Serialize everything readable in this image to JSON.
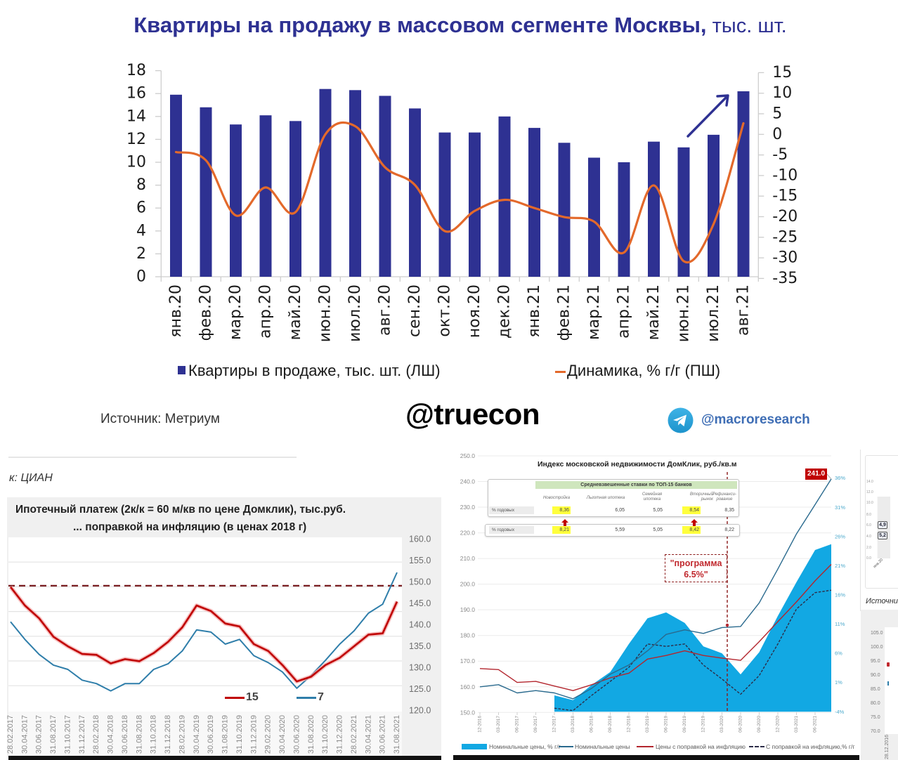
{
  "top_panel": {
    "title": {
      "main": "Квартиры на продажу в массовом сегменте Москвы,",
      "unit": " тыс. шт."
    },
    "legend": {
      "bars_label": "Квартиры в продаже, тыс. шт. (ЛШ)",
      "line_label": "Динамика, % г/г (ПШ)"
    },
    "source": "Источник: Метриум",
    "watermark": "@truecon",
    "telegram": {
      "icon": "telegram-icon",
      "handle": "@macroresearch"
    }
  },
  "bottom_left_panel": {
    "source_fragment": "к: ЦИАН",
    "title_line1": "Ипотечный платеж (2к/к = 60 м/кв по цене Домклик), тыс.руб.",
    "title_line2": "... поправкой на инфляцию (в ценах 2018 г)",
    "legend": [
      {
        "label": "15"
      },
      {
        "label": "7"
      }
    ]
  },
  "bottom_right_panel": {
    "title": "Индекс московской недвижимости ДомКлик, руб./кв.м",
    "last_value_badge": "241.0",
    "annotation": {
      "line1": "\"программа",
      "line2": "6.5%\""
    },
    "rates_table": {
      "header": "Средневзвешенные ставки по ТОП-15 банков",
      "columns": [
        {
          "line1": "Новостройка",
          "line2": ""
        },
        {
          "line1": "Льготная ипотека",
          "line2": ""
        },
        {
          "line1": "Семейная",
          "line2": "ипотека"
        },
        {
          "line1": "Вторичный",
          "line2": "рынок"
        },
        {
          "line1": "Рефинанси-",
          "line2": "рование"
        }
      ],
      "rows": [
        {
          "label": "% годовых",
          "values": [
            "8,36",
            "6,05",
            "5,05",
            "8,54",
            "8,35"
          ]
        },
        {
          "label": "% годовых",
          "values": [
            "8,21",
            "5,59",
            "5,05",
            "8,42",
            "8,22"
          ]
        }
      ],
      "highlighted_columns": [
        0,
        3
      ],
      "arrow_icon": "arrow-up-icon"
    },
    "legend": [
      {
        "label": "Номинальные цены, % г/г",
        "marker": "area"
      },
      {
        "label": "Номинальные цены",
        "marker": "line"
      },
      {
        "label": "Цены с поправкой на инфляцию",
        "marker": "line"
      },
      {
        "label": "С поправкой на инфляцию,% г/г",
        "marker": "dashed"
      }
    ]
  },
  "right_edge_panel": {
    "top_chart": {
      "y_ticks": [
        "14.0",
        "12.0",
        "10.0",
        "8.0",
        "6.0",
        "4.0",
        "2.0",
        "0.0"
      ],
      "badges": [
        "4,9",
        "5,2"
      ],
      "x_label": "янв.20"
    },
    "source_fragment": "Источни",
    "bottom_chart": {
      "y_ticks": [
        "105.0",
        "100.0",
        "95.0",
        "90.0",
        "85.0",
        "80.0",
        "75.0",
        "70.0"
      ],
      "x_label": "28.12.2016"
    }
  },
  "colors": {
    "title_navy": "#2e3192",
    "bars_navy": "#2e3192",
    "yoy_orange": "#e3692b",
    "telegram_blue": "#2ea6e0",
    "handle_blue": "#3f6eb5",
    "cian_red": "#c00000",
    "cian_blue": "#2f7eaa",
    "domclick_area": "#12a8e3",
    "badge_red": "#c00000",
    "highlight_yellow": "#ffff3c",
    "table_header_green": "#cfe6bd"
  },
  "chart_data": [
    {
      "type": "bar+line",
      "title": "Квартиры на продажу в массовом сегменте Москвы, тыс. шт.",
      "categories": [
        "янв.20",
        "фев.20",
        "мар.20",
        "апр.20",
        "май.20",
        "июн.20",
        "июл.20",
        "авг.20",
        "сен.20",
        "окт.20",
        "ноя.20",
        "дек.20",
        "янв.21",
        "фев.21",
        "мар.21",
        "апр.21",
        "май.21",
        "июн.21",
        "июл.21",
        "авг.21"
      ],
      "series": [
        {
          "name": "Квартиры в продаже, тыс. шт. (ЛШ)",
          "type": "bar",
          "axis": "left",
          "color": "#2e3192",
          "values": [
            15.9,
            14.8,
            13.3,
            14.1,
            13.6,
            16.4,
            16.3,
            15.8,
            14.7,
            12.6,
            12.6,
            14.0,
            13.0,
            11.7,
            10.4,
            10.0,
            11.8,
            11.3,
            12.4,
            16.2
          ]
        },
        {
          "name": "Динамика, % г/г (ПШ)",
          "type": "line",
          "smooth": true,
          "axis": "right",
          "color": "#e3692b",
          "values": [
            -4.3,
            -6.3,
            -19.7,
            -12.9,
            -18.9,
            0.0,
            2.0,
            -8.0,
            -12.3,
            -23.5,
            -18.6,
            -15.9,
            -17.9,
            -20.1,
            -21.2,
            -28.7,
            -12.4,
            -30.8,
            -21.8,
            2.7
          ]
        }
      ],
      "left_axis": {
        "min": 0,
        "max": 18,
        "ticks": [
          0,
          2,
          4,
          6,
          8,
          10,
          12,
          14,
          16,
          18
        ]
      },
      "right_axis": {
        "min": -35,
        "max": 15,
        "ticks": [
          15,
          10,
          5,
          0,
          -5,
          -10,
          -15,
          -20,
          -25,
          -30,
          -35
        ]
      },
      "xlabel": "",
      "ylabel": "",
      "grid": false,
      "legend_position": "bottom",
      "annotations": [
        {
          "type": "arrow",
          "direction": "up-right",
          "color": "#2e3192",
          "near": [
            "июн.21",
            "авг.21"
          ]
        }
      ]
    },
    {
      "type": "line",
      "title": "Ипотечный платеж (2к/к = 60 м/кв по цене Домклик), тыс.руб. ... поправкой на инфляцию (в ценах 2018 г)",
      "x": [
        "28.02.2017",
        "30.04.2017",
        "30.06.2017",
        "31.08.2017",
        "31.10.2017",
        "31.12.2017",
        "28.02.2018",
        "30.04.2018",
        "30.06.2018",
        "31.08.2018",
        "31.10.2018",
        "31.12.2018",
        "28.02.2019",
        "30.04.2019",
        "30.06.2019",
        "31.08.2019",
        "31.10.2019",
        "31.12.2019",
        "29.02.2020",
        "30.04.2020",
        "30.06.2020",
        "31.08.2020",
        "31.10.2020",
        "31.12.2020",
        "28.02.2021",
        "30.04.2021",
        "30.06.2021",
        "31.08.2021"
      ],
      "series": [
        {
          "name": "15",
          "color": "#c00000",
          "values": [
            148.8,
            144.5,
            141.5,
            137.2,
            135.0,
            133.2,
            133.0,
            131.0,
            132.0,
            131.5,
            133.4,
            136.0,
            139.4,
            144.5,
            143.2,
            140.3,
            139.6,
            135.5,
            133.9,
            130.6,
            126.8,
            127.9,
            130.6,
            132.3,
            135.0,
            137.7,
            138.0,
            145.4
          ]
        },
        {
          "name": "7",
          "color": "#2f7eaa",
          "values": [
            140.7,
            136.6,
            133.1,
            130.6,
            129.6,
            127.1,
            126.3,
            124.6,
            126.3,
            126.3,
            129.6,
            130.9,
            133.9,
            138.8,
            138.3,
            135.5,
            136.6,
            132.8,
            131.2,
            129.0,
            125.2,
            128.2,
            131.7,
            135.5,
            138.6,
            142.7,
            144.8,
            152.2
          ]
        }
      ],
      "reference_line": {
        "value": 149.1,
        "style": "dashed",
        "color": "#7a1f22"
      },
      "right_axis": {
        "min": 120,
        "max": 160,
        "ticks": [
          160,
          155,
          150,
          145,
          140,
          135,
          130,
          125,
          120
        ]
      },
      "xlabel": "",
      "ylabel": "",
      "grid": true,
      "legend_position": "inside-bottom"
    },
    {
      "type": "area+line",
      "title": "Индекс московской недвижимости ДомКлик, руб./кв.м",
      "x": [
        "12-2016",
        "03-2017",
        "06-2017",
        "09-2017",
        "12-2017",
        "03-2018",
        "06-2018",
        "09-2018",
        "12-2018",
        "03-2019",
        "06-2019",
        "09-2019",
        "12-2019",
        "03-2020",
        "06-2020",
        "09-2020",
        "12-2020",
        "03-2021",
        "06-2021"
      ],
      "series": [
        {
          "name": "Номинальные цены, % г/г",
          "type": "area",
          "axis": "right",
          "color": "#12a8e3",
          "values": [
            null,
            null,
            null,
            null,
            -1.2,
            -2.0,
            0.6,
            2.8,
            7.6,
            12.0,
            13.0,
            11.2,
            7.2,
            6.0,
            2.4,
            6.2,
            12.4,
            18.2,
            23.7
          ],
          "last": 24.7
        },
        {
          "name": "С поправкой на инфляцию,% г/г",
          "type": "line",
          "style": "dashed",
          "axis": "right",
          "color": "#2d2d48",
          "values": [
            null,
            null,
            null,
            null,
            -3.4,
            -3.8,
            -1.2,
            1.2,
            3.6,
            7.6,
            7.2,
            7.6,
            4.0,
            1.6,
            -1.0,
            2.2,
            7.6,
            13.6,
            16.4
          ],
          "last": 16.8
        },
        {
          "name": "Цены с поправкой на инфляцию",
          "type": "line",
          "style": "solid",
          "axis": "left",
          "color": "#b3262e",
          "values": [
            167.1,
            166.7,
            161.7,
            162.1,
            160.3,
            158.5,
            160.8,
            163.5,
            165.3,
            170.8,
            172.2,
            174.0,
            172.2,
            171.2,
            170.3,
            177.6,
            185.4,
            193.1,
            201.3
          ],
          "last": 207.7
        },
        {
          "name": "Номинальные цены",
          "type": "line",
          "style": "solid",
          "axis": "left",
          "color": "#2a6a8e",
          "values": [
            160.0,
            160.8,
            157.6,
            158.5,
            157.6,
            155.3,
            159.4,
            164.9,
            168.5,
            174.0,
            180.4,
            182.2,
            180.8,
            183.1,
            183.5,
            192.7,
            205.9,
            219.6,
            231.0
          ],
          "last": 241.0
        }
      ],
      "left_axis": {
        "min": 150,
        "max": 250,
        "ticks": [
          250,
          240,
          230,
          220,
          210,
          200,
          190,
          180,
          170,
          160,
          150
        ]
      },
      "right_axis": {
        "min": -4,
        "max": 36,
        "ticks": [
          36,
          31,
          26,
          21,
          16,
          11,
          6,
          1,
          -4
        ],
        "suffix": "%"
      },
      "annotations": [
        {
          "type": "vertical-dashed-line",
          "label": "\"программа 6.5%\"",
          "color": "#8b1a1a"
        },
        {
          "type": "value-badge",
          "label": "241.0",
          "color": "#c00000"
        }
      ],
      "xlabel": "",
      "ylabel": "",
      "grid": true,
      "legend_position": "bottom"
    }
  ]
}
